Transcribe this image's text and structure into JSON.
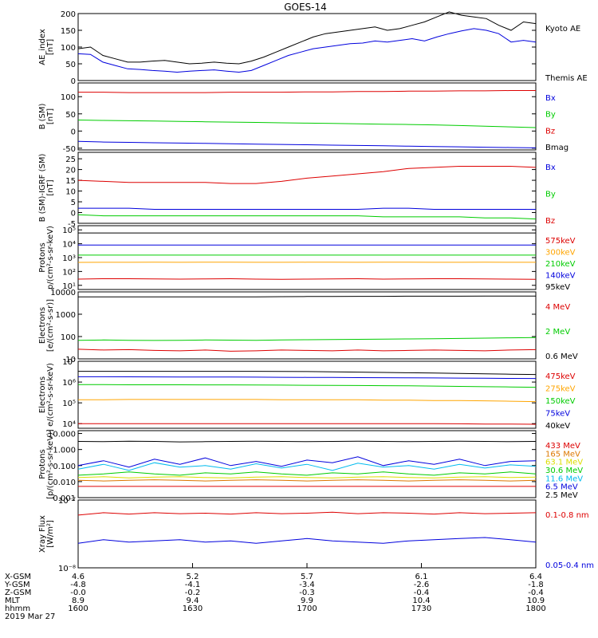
{
  "title": "GOES-14",
  "chart_data": [
    {
      "type": "line",
      "ylabel": [
        "AE_index",
        "[nT]"
      ],
      "scale": "linear",
      "ylim": [
        0,
        200
      ],
      "yticks": [
        "0",
        "50",
        "100",
        "150",
        "200"
      ],
      "series": [
        {
          "name": "Kyoto AE",
          "color": "#000000",
          "values": [
            95,
            100,
            75,
            65,
            55,
            55,
            58,
            60,
            55,
            50,
            52,
            55,
            52,
            50,
            58,
            70,
            85,
            100,
            115,
            130,
            140,
            145,
            150,
            155,
            160,
            150,
            155,
            165,
            175,
            190,
            205,
            195,
            190,
            185,
            165,
            150,
            175,
            170
          ]
        },
        {
          "name": "Themis AE",
          "color": "#000000",
          "values": [
            80,
            78,
            55,
            45,
            35,
            33,
            30,
            28,
            25,
            28,
            30,
            32,
            28,
            25,
            30,
            45,
            60,
            75,
            85,
            95,
            100,
            105,
            110,
            112,
            118,
            115,
            120,
            125,
            118,
            130,
            140,
            148,
            155,
            150,
            140,
            115,
            120,
            115
          ]
        }
      ],
      "series_colors_plot": [
        "#000000",
        "#0000dd"
      ]
    },
    {
      "type": "line",
      "ylabel": [
        "B (SM)",
        "[nT]"
      ],
      "scale": "linear",
      "ylim": [
        -55,
        140
      ],
      "yticks": [
        "-50",
        "0",
        "50",
        "100"
      ],
      "series": [
        {
          "name": "Bx",
          "color": "#0000dd",
          "values": [
            -30,
            -32,
            -33,
            -34,
            -35,
            -36,
            -37,
            -38,
            -39,
            -40,
            -41,
            -42,
            -43,
            -44,
            -45,
            -46,
            -47,
            -48,
            -49
          ]
        },
        {
          "name": "By",
          "color": "#00cc00",
          "values": [
            32,
            31,
            30,
            29,
            28,
            27,
            26,
            25,
            24,
            23,
            22,
            21,
            20,
            19,
            18,
            16,
            14,
            12,
            10
          ]
        },
        {
          "name": "Bz",
          "color": "#dd0000",
          "values": [
            113,
            113,
            112,
            112,
            112,
            112,
            113,
            113,
            113,
            114,
            114,
            115,
            115,
            116,
            116,
            117,
            117,
            118,
            118
          ]
        },
        {
          "name": "Bmag",
          "color": "#000000",
          "values": []
        }
      ]
    },
    {
      "type": "line",
      "ylabel": [
        "B (SM)-IGRF (SM)",
        "[nT]"
      ],
      "scale": "linear",
      "ylim": [
        -5,
        28
      ],
      "yticks": [
        "-5",
        "0",
        "5",
        "10",
        "15",
        "20",
        "25"
      ],
      "series": [
        {
          "name": "Bx",
          "color": "#0000dd",
          "values": [
            2,
            2,
            2,
            1.5,
            1.5,
            1.5,
            1.5,
            1.5,
            1.5,
            1.5,
            1.5,
            1.5,
            2,
            2,
            1.5,
            1.5,
            1.5,
            1.5,
            1.5
          ]
        },
        {
          "name": "By",
          "color": "#00cc00",
          "values": [
            -1,
            -1.5,
            -1.5,
            -1.5,
            -1.5,
            -1.5,
            -1.5,
            -1.5,
            -1.5,
            -1.5,
            -1.5,
            -1.5,
            -2,
            -2,
            -2,
            -2,
            -2.5,
            -2.5,
            -3
          ]
        },
        {
          "name": "Bz",
          "color": "#dd0000",
          "values": [
            15,
            14.5,
            14,
            14,
            14,
            14,
            13.5,
            13.5,
            14.5,
            16,
            17,
            18,
            19,
            20.5,
            21,
            21.5,
            21.5,
            21.5,
            21
          ]
        }
      ]
    },
    {
      "type": "line",
      "ylabel": [
        "Protons",
        "p/(cm²-s-sr-keV)"
      ],
      "scale": "log",
      "ylim": [
        5,
        200000
      ],
      "yticks": [
        "10¹",
        "10²",
        "10³",
        "10⁴",
        "10⁵"
      ],
      "series": [
        {
          "name": "575keV",
          "color": "#dd0000",
          "values": [
            28,
            30,
            30,
            29,
            28,
            29,
            30,
            28,
            27,
            28,
            29,
            30,
            28,
            29,
            30,
            30,
            29,
            28,
            27
          ]
        },
        {
          "name": "300keV",
          "color": "#ffa500",
          "values": [
            450,
            460,
            455,
            470,
            460,
            465,
            470,
            455,
            460,
            465,
            470,
            460,
            465,
            470,
            455,
            460,
            470,
            460,
            455
          ]
        },
        {
          "name": "210keV",
          "color": "#00cc00",
          "values": [
            1500,
            1500,
            1500,
            1500,
            1500,
            1500,
            1500,
            1500,
            1500,
            1500,
            1500,
            1500,
            1500,
            1500,
            1500,
            1500,
            1500,
            1500,
            1500
          ]
        },
        {
          "name": "140keV",
          "color": "#0000dd",
          "values": [
            8000,
            8000,
            8000,
            8000,
            8000,
            8000,
            8000,
            8000,
            8000,
            8000,
            8000,
            8000,
            8000,
            8000,
            8000,
            8000,
            8000,
            8000,
            8000
          ]
        },
        {
          "name": "95keV",
          "color": "#000000",
          "values": [
            60000,
            60000,
            60000,
            60000,
            60000,
            60000,
            60000,
            60000,
            60000,
            60000,
            60000,
            60000,
            60000,
            60000,
            60000,
            60000,
            60000,
            60000,
            60000
          ]
        }
      ]
    },
    {
      "type": "line",
      "ylabel": [
        "Electrons",
        "[e/(cm²-s-sr)]"
      ],
      "scale": "log",
      "ylim": [
        10,
        10000
      ],
      "yticks": [
        "10",
        "100",
        "1000",
        "10000"
      ],
      "series": [
        {
          "name": "4 MeV",
          "color": "#dd0000",
          "values": [
            27,
            25,
            26,
            24,
            23,
            25,
            22,
            23,
            25,
            24,
            23,
            25,
            23,
            24,
            25,
            24,
            23,
            25,
            26
          ]
        },
        {
          "name": "2 MeV",
          "color": "#00cc00",
          "values": [
            68,
            70,
            68,
            67,
            68,
            70,
            69,
            68,
            70,
            72,
            73,
            75,
            77,
            78,
            80,
            82,
            85,
            88,
            90
          ]
        },
        {
          "name": "0.6 MeV",
          "color": "#000000",
          "values": [
            6000,
            6000,
            6000,
            6000,
            6000,
            6000,
            6000,
            6000,
            6100,
            6200,
            6200,
            6300,
            6300,
            6400,
            6400,
            6400,
            6500,
            6500,
            6500
          ]
        }
      ]
    },
    {
      "type": "line",
      "ylabel": [
        "Electrons",
        "e/(cm²-s-sr-keV)"
      ],
      "scale": "log",
      "ylim": [
        6000,
        10000000
      ],
      "yticks": [
        "10⁴",
        "10⁵",
        "10⁶",
        "10⁷"
      ],
      "series": [
        {
          "name": "475keV",
          "color": "#dd0000",
          "values": [
            10000,
            10000,
            10000,
            10000,
            10000,
            10000,
            10000,
            10000,
            10000,
            10000,
            10000,
            10000,
            10000,
            10000,
            10000,
            9800,
            9600,
            9500,
            9300
          ]
        },
        {
          "name": "275keV",
          "color": "#ffa500",
          "values": [
            140000,
            140000,
            145000,
            145000,
            145000,
            145000,
            145000,
            145000,
            140000,
            140000,
            140000,
            140000,
            135000,
            135000,
            130000,
            128000,
            125000,
            120000,
            115000
          ]
        },
        {
          "name": "150keV",
          "color": "#00cc00",
          "values": [
            750000,
            750000,
            740000,
            740000,
            740000,
            730000,
            730000,
            720000,
            710000,
            700000,
            690000,
            680000,
            670000,
            660000,
            640000,
            620000,
            600000,
            580000,
            560000
          ]
        },
        {
          "name": "75keV",
          "color": "#0000dd",
          "values": [
            1800000,
            1800000,
            1780000,
            1770000,
            1760000,
            1750000,
            1740000,
            1720000,
            1700000,
            1680000,
            1660000,
            1640000,
            1620000,
            1600000,
            1580000,
            1550000,
            1520000,
            1500000,
            1480000
          ]
        },
        {
          "name": "40keV",
          "color": "#000000",
          "values": [
            3300000,
            3300000,
            3300000,
            3300000,
            3300000,
            3300000,
            3300000,
            3300000,
            3250000,
            3200000,
            3100000,
            3000000,
            2900000,
            2800000,
            2700000,
            2600000,
            2500000,
            2400000,
            2300000
          ]
        }
      ]
    },
    {
      "type": "line",
      "ylabel": [
        "Protons",
        "[p/(cm²-s-sr-keV)]"
      ],
      "scale": "log",
      "ylim": [
        0.001,
        15
      ],
      "yticks": [
        "0.001",
        "0.010",
        "0.100",
        "1.000",
        "10.000"
      ],
      "series": [
        {
          "name": "433 MeV",
          "color": "#dd0000",
          "values": [
            0.005,
            0.005,
            0.005,
            0.005,
            0.005,
            0.005,
            0.005,
            0.005,
            0.005,
            0.005,
            0.005,
            0.005,
            0.005,
            0.005,
            0.005,
            0.005,
            0.005,
            0.005,
            0.005
          ]
        },
        {
          "name": "165 MeV",
          "color": "#dd7700",
          "values": [
            0.012,
            0.011,
            0.012,
            0.013,
            0.012,
            0.011,
            0.012,
            0.013,
            0.012,
            0.011,
            0.012,
            0.013,
            0.012,
            0.011,
            0.012,
            0.013,
            0.012,
            0.011,
            0.012
          ]
        },
        {
          "name": "63.1 MeV",
          "color": "#dddd00",
          "values": [
            0.018,
            0.02,
            0.017,
            0.019,
            0.02,
            0.018,
            0.017,
            0.019,
            0.02,
            0.018,
            0.017,
            0.019,
            0.02,
            0.018,
            0.017,
            0.019,
            0.02,
            0.018,
            0.019
          ]
        },
        {
          "name": "30.6 MeV",
          "color": "#00cc00",
          "values": [
            0.025,
            0.03,
            0.04,
            0.03,
            0.025,
            0.035,
            0.03,
            0.04,
            0.03,
            0.025,
            0.035,
            0.03,
            0.04,
            0.03,
            0.025,
            0.035,
            0.03,
            0.04,
            0.03
          ]
        },
        {
          "name": "11.6 MeV",
          "color": "#00bbee",
          "values": [
            0.06,
            0.12,
            0.05,
            0.15,
            0.08,
            0.1,
            0.06,
            0.13,
            0.07,
            0.12,
            0.05,
            0.14,
            0.08,
            0.1,
            0.06,
            0.12,
            0.07,
            0.11,
            0.09
          ]
        },
        {
          "name": "6.5 MeV",
          "color": "#0000dd",
          "values": [
            0.1,
            0.2,
            0.08,
            0.25,
            0.12,
            0.3,
            0.1,
            0.18,
            0.09,
            0.22,
            0.15,
            0.35,
            0.1,
            0.2,
            0.12,
            0.25,
            0.1,
            0.18,
            0.2
          ]
        },
        {
          "name": "2.5 MeV",
          "color": "#000000",
          "values": [
            3.2,
            3.1,
            3.3,
            3.2,
            3.0,
            3.1,
            3.2,
            3.3,
            3.2,
            3.1,
            3.2,
            3.3,
            3.2,
            3.1,
            3.2,
            3.3,
            3.2,
            3.1,
            3.2
          ]
        }
      ]
    },
    {
      "type": "line",
      "ylabel": [
        "Xray Flux",
        "[W/m²]"
      ],
      "scale": "log",
      "ylim": [
        1e-08,
        1e-07
      ],
      "yticks": [
        "10⁻⁸",
        "10⁻⁷"
      ],
      "series": [
        {
          "name": "0.1-0.8 nm",
          "color": "#dd0000",
          "values": [
            6e-08,
            6.5e-08,
            6.2e-08,
            6.5e-08,
            6.3e-08,
            6.4e-08,
            6.2e-08,
            6.5e-08,
            6.3e-08,
            6.4e-08,
            6.6e-08,
            6.3e-08,
            6.5e-08,
            6.4e-08,
            6.2e-08,
            6.5e-08,
            6.3e-08,
            6.4e-08,
            6.5e-08
          ]
        },
        {
          "name": "0.05-0.4 nm",
          "color": "#0000dd",
          "values": [
            2.3e-08,
            2.6e-08,
            2.4e-08,
            2.5e-08,
            2.6e-08,
            2.4e-08,
            2.5e-08,
            2.3e-08,
            2.5e-08,
            2.7e-08,
            2.5e-08,
            2.4e-08,
            2.3e-08,
            2.5e-08,
            2.6e-08,
            2.7e-08,
            2.8e-08,
            2.6e-08,
            2.4e-08
          ]
        }
      ]
    }
  ],
  "axis": {
    "row_labels": [
      "X-GSM",
      "Y-GSM",
      "Z-GSM",
      "MLT",
      "hhmm"
    ],
    "columns": [
      [
        "4.6",
        "-4.8",
        "-0.0",
        "8.9",
        "1600"
      ],
      [
        "5.2",
        "-4.1",
        "-0.2",
        "9.4",
        "1630"
      ],
      [
        "5.7",
        "-3.4",
        "-0.3",
        "9.9",
        "1700"
      ],
      [
        "6.1",
        "-2.6",
        "-0.4",
        "10.4",
        "1730"
      ],
      [
        "6.4",
        "-1.8",
        "-0.4",
        "10.9",
        "1800"
      ]
    ],
    "date": "2019 Mar 27"
  }
}
